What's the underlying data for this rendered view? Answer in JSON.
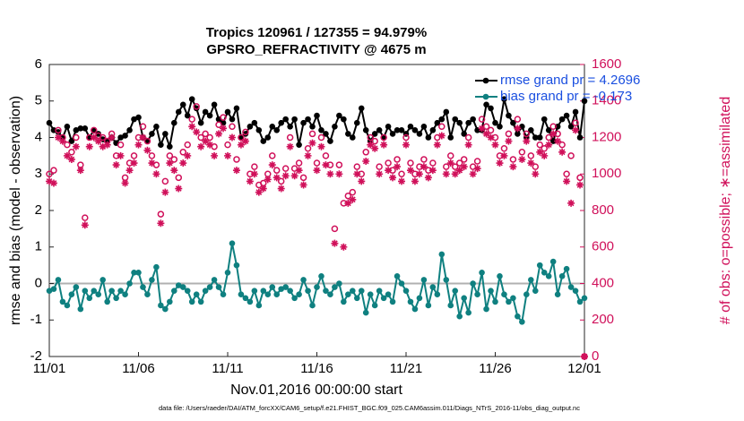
{
  "chart_data": {
    "type": "line",
    "title": "Tropics 120961 / 127355 = 94.979%",
    "subtitle": "GPSRO_REFRACTIVITY @ 4675 m",
    "xlabel": "Nov.01,2016 00:00:00 start",
    "ylabel": "rmse and bias (model - observation)",
    "y2label": "# of obs: o=possible; ∗=assimilated",
    "footnote": "data file: /Users/raeder/DAI/ATM_forcXX/CAM6_setup/f.e21.FHIST_BGC.f09_025.CAM6assim.011/Diags_NTrS_2016-11/obs_diag_output.nc",
    "legend_position": "upper right",
    "legend_text_color": "#1a4fe0",
    "y2_color": "#d0105a",
    "xlim": [
      0,
      30
    ],
    "xticks": [
      {
        "value": 0,
        "label": "11/01"
      },
      {
        "value": 5,
        "label": "11/06"
      },
      {
        "value": 10,
        "label": "11/11"
      },
      {
        "value": 15,
        "label": "11/16"
      },
      {
        "value": 20,
        "label": "11/21"
      },
      {
        "value": 25,
        "label": "11/26"
      },
      {
        "value": 30,
        "label": "12/01"
      }
    ],
    "ylim": [
      -2,
      6
    ],
    "yticks": [
      -2,
      -1,
      0,
      1,
      2,
      3,
      4,
      5,
      6
    ],
    "y2lim": [
      0,
      1600
    ],
    "y2ticks": [
      0,
      200,
      400,
      600,
      800,
      1000,
      1200,
      1400,
      1600
    ],
    "x": [
      0,
      0.25,
      0.5,
      0.75,
      1,
      1.25,
      1.5,
      1.75,
      2,
      2.25,
      2.5,
      2.75,
      3,
      3.25,
      3.5,
      3.75,
      4,
      4.25,
      4.5,
      4.75,
      5,
      5.25,
      5.5,
      5.75,
      6,
      6.25,
      6.5,
      6.75,
      7,
      7.25,
      7.5,
      7.75,
      8,
      8.25,
      8.5,
      8.75,
      9,
      9.25,
      9.5,
      9.75,
      10,
      10.25,
      10.5,
      10.75,
      11,
      11.25,
      11.5,
      11.75,
      12,
      12.25,
      12.5,
      12.75,
      13,
      13.25,
      13.5,
      13.75,
      14,
      14.25,
      14.5,
      14.75,
      15,
      15.25,
      15.5,
      15.75,
      16,
      16.25,
      16.5,
      16.75,
      17,
      17.25,
      17.5,
      17.75,
      18,
      18.25,
      18.5,
      18.75,
      19,
      19.25,
      19.5,
      19.75,
      20,
      20.25,
      20.5,
      20.75,
      21,
      21.25,
      21.5,
      21.75,
      22,
      22.25,
      22.5,
      22.75,
      23,
      23.25,
      23.5,
      23.75,
      24,
      24.25,
      24.5,
      24.75,
      25,
      25.25,
      25.5,
      25.75,
      26,
      26.25,
      26.5,
      26.75,
      27,
      27.25,
      27.5,
      27.75,
      28,
      28.25,
      28.5,
      28.75,
      29,
      29.25,
      29.5,
      29.75,
      30
    ],
    "series": [
      {
        "name": "rmse grand pr = 4.2696",
        "color": "#000000",
        "marker": "filled",
        "in_legend": true,
        "axis": "y",
        "values": [
          4.4,
          4.2,
          4.15,
          4.0,
          4.3,
          3.9,
          4.2,
          4.25,
          4.25,
          4.0,
          4.2,
          4.1,
          3.95,
          3.9,
          4.0,
          3.85,
          4.0,
          4.05,
          4.2,
          4.5,
          4.55,
          4.0,
          3.9,
          4.1,
          4.3,
          3.8,
          4.1,
          3.75,
          4.4,
          4.7,
          4.9,
          4.6,
          5.05,
          4.8,
          4.4,
          4.7,
          4.6,
          4.9,
          4.5,
          4.4,
          4.7,
          4.5,
          4.8,
          4.0,
          4.1,
          4.3,
          4.4,
          4.2,
          3.9,
          4.0,
          4.3,
          4.2,
          4.4,
          4.5,
          4.3,
          4.5,
          3.8,
          4.4,
          4.5,
          4.3,
          4.6,
          4.2,
          4.1,
          3.9,
          4.3,
          4.6,
          4.5,
          4.1,
          4.0,
          4.4,
          4.8,
          4.2,
          3.9,
          4.1,
          4.2,
          4.0,
          4.3,
          4.1,
          4.2,
          4.2,
          4.1,
          4.3,
          4.2,
          4.1,
          4.3,
          4.0,
          4.2,
          4.4,
          4.5,
          4.7,
          4.0,
          4.5,
          4.4,
          4.1,
          4.4,
          4.5,
          4.2,
          4.2,
          4.9,
          4.8,
          4.4,
          4.3,
          5.05,
          4.6,
          4.4,
          4.1,
          4.3,
          4.0,
          4.2,
          4.0,
          4.0,
          4.5,
          4.2,
          3.9,
          4.3,
          4.5,
          4.6,
          4.3,
          4.7,
          4.0,
          5.0
        ]
      },
      {
        "name": "bias grand pr = -0.173",
        "color": "#0f8080",
        "marker": "filled",
        "in_legend": true,
        "axis": "y",
        "values": [
          -0.2,
          -0.15,
          0.1,
          -0.5,
          -0.6,
          -0.3,
          -0.1,
          -0.7,
          -0.2,
          -0.4,
          -0.2,
          -0.3,
          0.1,
          -0.5,
          -0.2,
          -0.4,
          -0.2,
          -0.3,
          0.0,
          0.3,
          0.3,
          -0.1,
          -0.3,
          0.1,
          0.45,
          -0.6,
          -0.7,
          -0.5,
          -0.2,
          -0.05,
          -0.1,
          -0.2,
          -0.5,
          -0.3,
          -0.5,
          -0.2,
          -0.1,
          0.1,
          -0.1,
          -0.3,
          0.3,
          1.1,
          0.5,
          -0.3,
          -0.4,
          -0.5,
          -0.2,
          -0.6,
          -0.2,
          -0.3,
          -0.1,
          -0.3,
          -0.15,
          -0.1,
          -0.2,
          -0.4,
          -0.3,
          0.1,
          -0.2,
          -0.6,
          -0.1,
          0.2,
          -0.2,
          -0.3,
          -0.1,
          0.0,
          -0.5,
          -0.3,
          -0.2,
          -0.4,
          -0.2,
          -0.8,
          -0.3,
          -0.6,
          -0.2,
          -0.4,
          -0.3,
          -0.5,
          0.2,
          0.0,
          -0.2,
          -0.5,
          -0.7,
          -0.4,
          0.1,
          -0.6,
          -0.1,
          -0.3,
          0.8,
          0.1,
          -0.6,
          -0.2,
          -0.9,
          -0.4,
          -0.8,
          0.0,
          -0.3,
          0.3,
          -0.7,
          -0.2,
          -0.5,
          0.2,
          -0.3,
          -0.5,
          -0.4,
          -0.9,
          -1.05,
          -0.3,
          0.1,
          -0.2,
          0.5,
          0.3,
          0.2,
          0.6,
          -0.3,
          0.2,
          0.4,
          -0.1,
          -0.2,
          -0.5,
          -0.4
        ]
      },
      {
        "name": "possible",
        "color": "#d0105a",
        "marker": "open",
        "in_legend": false,
        "axis": "y2",
        "values": [
          1000,
          1020,
          1240,
          1200,
          1160,
          1120,
          1200,
          1050,
          760,
          1200,
          1240,
          1210,
          1200,
          1180,
          1220,
          1100,
          1160,
          980,
          1060,
          1100,
          1200,
          1260,
          1180,
          1100,
          1050,
          780,
          960,
          1100,
          1080,
          980,
          1120,
          1160,
          1300,
          1370,
          1200,
          1220,
          1200,
          1150,
          1270,
          1310,
          1160,
          1260,
          1080,
          1200,
          1230,
          1000,
          1040,
          940,
          950,
          1000,
          1100,
          1020,
          960,
          1030,
          1200,
          1030,
          1060,
          980,
          1140,
          1220,
          1060,
          1200,
          1100,
          1050,
          700,
          1050,
          840,
          880,
          900,
          1040,
          1000,
          1120,
          1200,
          1180,
          1040,
          1200,
          1060,
          1020,
          1080,
          1000,
          1200,
          1060,
          1000,
          1040,
          1080,
          1020,
          1060,
          1200,
          1260,
          1040,
          1100,
          1040,
          1060,
          1080,
          1200,
          1040,
          1070,
          1300,
          1260,
          1240,
          1200,
          1100,
          1140,
          1220,
          1080,
          1300,
          1120,
          1220,
          1100,
          1040,
          1160,
          1140,
          1200,
          1260,
          1220,
          1160,
          1000,
          1100,
          1280,
          980,
          0
        ]
      },
      {
        "name": "assimilated",
        "color": "#d0105a",
        "marker": "star",
        "in_legend": false,
        "axis": "y2",
        "values": [
          960,
          950,
          1200,
          1180,
          1100,
          1080,
          1150,
          1020,
          720,
          1150,
          1200,
          1180,
          1150,
          1160,
          1200,
          1050,
          1100,
          950,
          1020,
          1060,
          1160,
          1200,
          1130,
          1060,
          1000,
          730,
          900,
          1060,
          1020,
          920,
          1060,
          1100,
          1260,
          1230,
          1150,
          1180,
          1160,
          1100,
          1220,
          1250,
          1100,
          1200,
          1020,
          1160,
          1180,
          960,
          1000,
          900,
          920,
          970,
          1050,
          980,
          920,
          990,
          1150,
          990,
          1020,
          940,
          1100,
          1170,
          1020,
          1150,
          1050,
          1000,
          620,
          1000,
          600,
          840,
          860,
          1000,
          960,
          1070,
          1160,
          1140,
          1000,
          1160,
          1020,
          980,
          1040,
          960,
          1160,
          1020,
          960,
          1000,
          1040,
          980,
          1020,
          1160,
          1210,
          1000,
          1060,
          1000,
          1020,
          1040,
          1160,
          1000,
          1030,
          1250,
          1220,
          1200,
          1160,
          1060,
          1100,
          1180,
          1040,
          1250,
          1080,
          1180,
          1060,
          1000,
          1120,
          1100,
          1160,
          1220,
          1180,
          1120,
          960,
          840,
          1240,
          940,
          0
        ]
      }
    ]
  }
}
